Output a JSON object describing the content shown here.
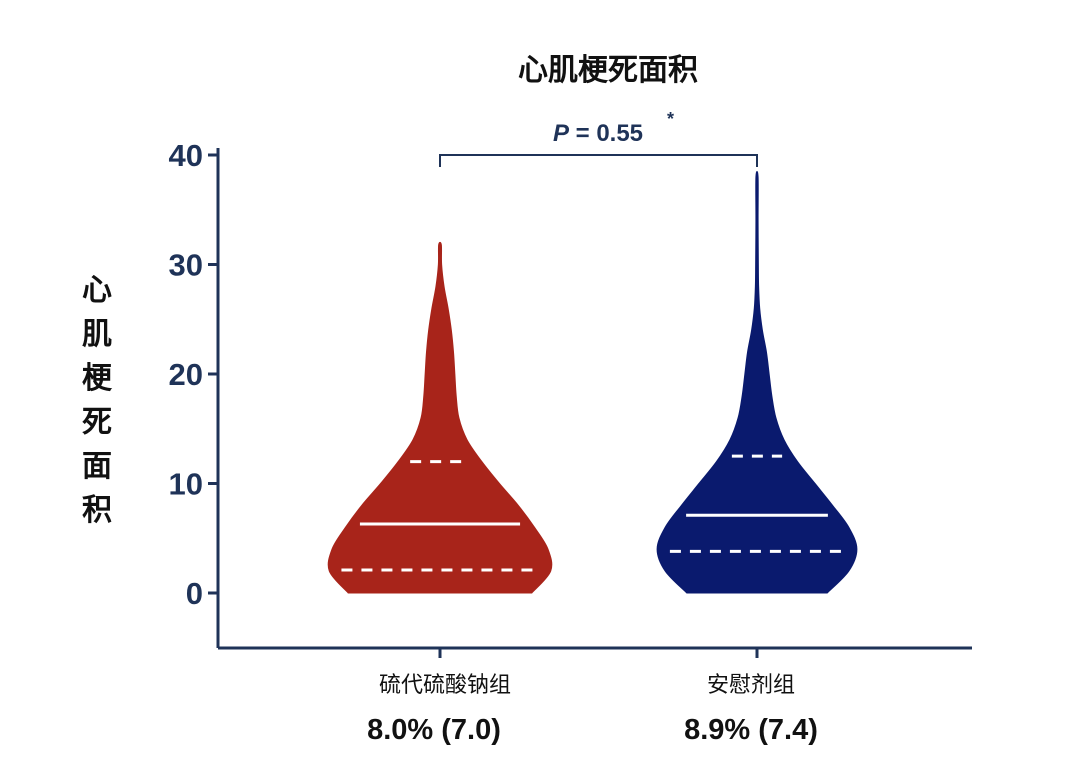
{
  "chart_data": {
    "type": "violin",
    "title": "心肌梗死面积",
    "ylabel": "心肌梗死面积",
    "xlabel": "",
    "ylim": [
      -5,
      40
    ],
    "yticks": [
      0,
      10,
      20,
      30,
      40
    ],
    "ytick_labels": [
      "0",
      "10",
      "20",
      "30",
      "40"
    ],
    "categories": [
      "硫代硫酸钠组",
      "安慰剂组"
    ],
    "category_stats": [
      "8.0% (7.0)",
      "8.9% (7.4)"
    ],
    "series": [
      {
        "color": "#a8241a",
        "min": 0,
        "max": 31.8,
        "median": 6.3,
        "q1": 2.1,
        "q3": 12.0,
        "density": [
          [
            0,
            3.4
          ],
          [
            2,
            4.1
          ],
          [
            4,
            4.0
          ],
          [
            6,
            3.5
          ],
          [
            8,
            2.9
          ],
          [
            10,
            2.2
          ],
          [
            12,
            1.55
          ],
          [
            14,
            1.0
          ],
          [
            16,
            0.7
          ],
          [
            18,
            0.6
          ],
          [
            20,
            0.55
          ],
          [
            22,
            0.5
          ],
          [
            24,
            0.42
          ],
          [
            26,
            0.3
          ],
          [
            28,
            0.15
          ],
          [
            30,
            0.06
          ],
          [
            31.8,
            0.05
          ]
        ]
      },
      {
        "color": "#0a1a6e",
        "min": 0,
        "max": 38,
        "median": 7.1,
        "q1": 3.8,
        "q3": 12.5,
        "density": [
          [
            0,
            2.6
          ],
          [
            2,
            3.4
          ],
          [
            4,
            3.7
          ],
          [
            6,
            3.4
          ],
          [
            8,
            2.8
          ],
          [
            10,
            2.15
          ],
          [
            12,
            1.5
          ],
          [
            14,
            1.0
          ],
          [
            16,
            0.7
          ],
          [
            18,
            0.55
          ],
          [
            20,
            0.45
          ],
          [
            22,
            0.35
          ],
          [
            24,
            0.2
          ],
          [
            26,
            0.1
          ],
          [
            28,
            0.06
          ],
          [
            30,
            0.05
          ],
          [
            34,
            0.04
          ],
          [
            38,
            0.04
          ]
        ]
      }
    ],
    "annotation": {
      "p_label": "P",
      "p_text": " = 0.55",
      "star": "*"
    }
  }
}
